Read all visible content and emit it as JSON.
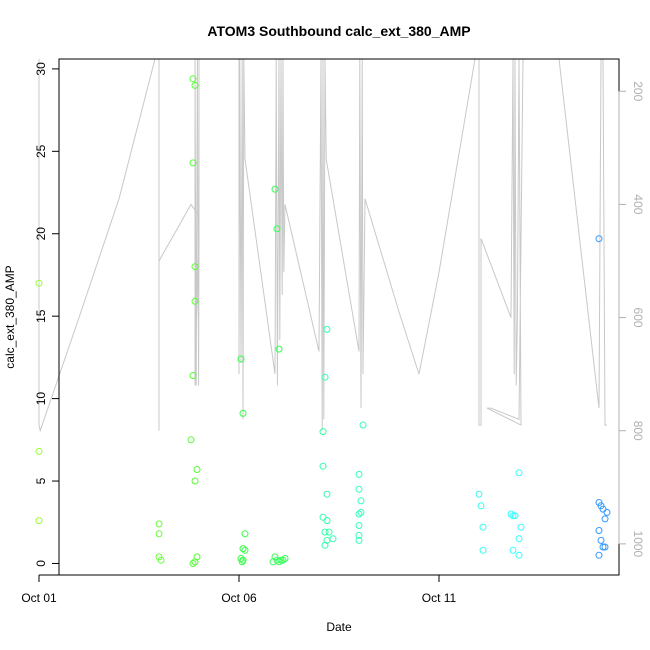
{
  "chart_data": {
    "type": "scatter",
    "title": "ATOM3 Southbound calc_ext_380_AMP",
    "xlabel": "Date",
    "ylabel": "calc_ext_380_AMP",
    "x_ticks": [
      "Oct 01",
      "Oct 06",
      "Oct 11"
    ],
    "y_ticks": [
      "0",
      "5",
      "10",
      "15",
      "20",
      "25",
      "30"
    ],
    "y2_ticks": [
      "200",
      "400",
      "600",
      "800",
      "1000"
    ],
    "xlim_days": [
      0.5,
      14.5
    ],
    "ylim": [
      -0.7,
      30.6
    ],
    "y2lim": [
      1055,
      143
    ],
    "grid": false,
    "series": [
      {
        "type": "points",
        "axis": "left",
        "points": [
          [
            0.0,
            17.0,
            "#99ff33"
          ],
          [
            0.0,
            6.8,
            "#99ff33"
          ],
          [
            0.0,
            2.6,
            "#99ff33"
          ],
          [
            3.0,
            2.4,
            "#66ff33"
          ],
          [
            3.0,
            1.8,
            "#66ff33"
          ],
          [
            3.0,
            0.4,
            "#66ff33"
          ],
          [
            3.05,
            0.2,
            "#66ff33"
          ],
          [
            3.8,
            7.5,
            "#55ff33"
          ],
          [
            3.85,
            29.4,
            "#55ff33"
          ],
          [
            3.9,
            29.0,
            "#55ff33"
          ],
          [
            3.85,
            24.3,
            "#55ff33"
          ],
          [
            3.9,
            18.0,
            "#55ff33"
          ],
          [
            3.9,
            15.9,
            "#55ff33"
          ],
          [
            3.85,
            11.4,
            "#55ff33"
          ],
          [
            3.95,
            5.7,
            "#55ff33"
          ],
          [
            3.9,
            5.0,
            "#55ff33"
          ],
          [
            3.95,
            0.4,
            "#55ff33"
          ],
          [
            3.9,
            0.1,
            "#55ff33"
          ],
          [
            3.85,
            0.0,
            "#55ff33"
          ],
          [
            5.05,
            12.4,
            "#33ff44"
          ],
          [
            5.1,
            9.1,
            "#33ff44"
          ],
          [
            5.15,
            1.8,
            "#33ff44"
          ],
          [
            5.1,
            0.9,
            "#33ff44"
          ],
          [
            5.15,
            0.8,
            "#33ff44"
          ],
          [
            5.05,
            0.3,
            "#33ff44"
          ],
          [
            5.1,
            0.2,
            "#33ff44"
          ],
          [
            5.08,
            0.1,
            "#33ff44"
          ],
          [
            5.9,
            22.7,
            "#33ff55"
          ],
          [
            5.95,
            20.3,
            "#33ff55"
          ],
          [
            6.0,
            13.0,
            "#33ff55"
          ],
          [
            5.9,
            0.4,
            "#33ff55"
          ],
          [
            5.95,
            0.2,
            "#33ff55"
          ],
          [
            6.05,
            0.2,
            "#33ff55"
          ],
          [
            6.1,
            0.2,
            "#33ff55"
          ],
          [
            5.85,
            0.1,
            "#33ff55"
          ],
          [
            6.0,
            0.1,
            "#33ff55"
          ],
          [
            6.15,
            0.3,
            "#33ff55"
          ],
          [
            7.2,
            14.2,
            "#33ffaa"
          ],
          [
            7.15,
            11.3,
            "#33ffaa"
          ],
          [
            7.1,
            8.0,
            "#33ffaa"
          ],
          [
            7.1,
            5.9,
            "#33ffaa"
          ],
          [
            7.2,
            4.2,
            "#33ffaa"
          ],
          [
            7.1,
            2.8,
            "#33ffaa"
          ],
          [
            7.2,
            2.6,
            "#33ffaa"
          ],
          [
            7.15,
            1.9,
            "#33ffaa"
          ],
          [
            7.25,
            1.9,
            "#33ffaa"
          ],
          [
            7.35,
            1.5,
            "#33ffaa"
          ],
          [
            7.2,
            1.4,
            "#33ffaa"
          ],
          [
            7.15,
            1.1,
            "#33ffaa"
          ],
          [
            8.0,
            5.4,
            "#33ffbb"
          ],
          [
            8.1,
            8.4,
            "#33ffbb"
          ],
          [
            8.0,
            4.5,
            "#33ffbb"
          ],
          [
            8.05,
            3.8,
            "#33ffbb"
          ],
          [
            8.0,
            3.0,
            "#33ffbb"
          ],
          [
            8.05,
            3.1,
            "#33ffbb"
          ],
          [
            8.0,
            2.3,
            "#33ffbb"
          ],
          [
            8.0,
            1.7,
            "#33ffbb"
          ],
          [
            8.0,
            1.4,
            "#33ffbb"
          ],
          [
            11.0,
            4.2,
            "#33ffee"
          ],
          [
            11.05,
            3.5,
            "#33ffee"
          ],
          [
            11.1,
            2.2,
            "#33ffee"
          ],
          [
            11.1,
            0.8,
            "#33ffee"
          ],
          [
            11.8,
            3.0,
            "#33ffff"
          ],
          [
            11.85,
            2.9,
            "#33ffff"
          ],
          [
            11.9,
            2.9,
            "#33ffff"
          ],
          [
            12.0,
            5.5,
            "#33ffff"
          ],
          [
            12.05,
            2.2,
            "#33ffff"
          ],
          [
            12.0,
            1.5,
            "#33ffff"
          ],
          [
            11.85,
            0.8,
            "#33ffff"
          ],
          [
            12.0,
            0.5,
            "#33ffff"
          ],
          [
            14.0,
            19.7,
            "#3399ff"
          ],
          [
            14.0,
            3.7,
            "#3399ff"
          ],
          [
            14.05,
            3.5,
            "#3399ff"
          ],
          [
            14.1,
            3.3,
            "#3399ff"
          ],
          [
            14.2,
            3.1,
            "#3399ff"
          ],
          [
            14.15,
            2.7,
            "#3399ff"
          ],
          [
            14.0,
            2.0,
            "#3399ff"
          ],
          [
            14.05,
            1.4,
            "#3399ff"
          ],
          [
            14.1,
            1.0,
            "#3399ff"
          ],
          [
            14.15,
            1.0,
            "#3399ff"
          ],
          [
            14.0,
            0.5,
            "#3399ff"
          ]
        ]
      },
      {
        "type": "line",
        "axis": "right",
        "color": "#c8c8c8",
        "points": [
          [
            0.0,
            143
          ],
          [
            0.0,
            790
          ],
          [
            0.03,
            800
          ],
          [
            1.0,
            600
          ],
          [
            2.0,
            390
          ],
          [
            2.9,
            143
          ],
          [
            3.0,
            143
          ],
          [
            3.0,
            800
          ],
          [
            3.0,
            500
          ],
          [
            3.8,
            400
          ],
          [
            4.0,
            420
          ],
          [
            3.9,
            720
          ],
          [
            3.9,
            143
          ],
          [
            3.93,
            720
          ],
          [
            3.96,
            143
          ],
          [
            3.99,
            720
          ],
          [
            4.0,
            460
          ],
          [
            4.0,
            143
          ],
          [
            4.1,
            143
          ],
          [
            5.0,
            143
          ],
          [
            5.0,
            700
          ],
          [
            5.02,
            143
          ],
          [
            5.05,
            680
          ],
          [
            5.08,
            143
          ],
          [
            5.1,
            780
          ],
          [
            5.12,
            143
          ],
          [
            5.15,
            320
          ],
          [
            5.9,
            700
          ],
          [
            5.93,
            143
          ],
          [
            5.96,
            720
          ],
          [
            6.0,
            143
          ],
          [
            6.02,
            640
          ],
          [
            6.05,
            143
          ],
          [
            6.08,
            560
          ],
          [
            6.1,
            143
          ],
          [
            6.12,
            520
          ],
          [
            6.15,
            400
          ],
          [
            7.0,
            660
          ],
          [
            7.05,
            143
          ],
          [
            7.08,
            800
          ],
          [
            7.1,
            143
          ],
          [
            7.12,
            780
          ],
          [
            7.15,
            143
          ],
          [
            7.18,
            320
          ],
          [
            8.0,
            660
          ],
          [
            8.02,
            143
          ],
          [
            8.05,
            760
          ],
          [
            8.08,
            143
          ],
          [
            8.1,
            700
          ],
          [
            8.15,
            390
          ],
          [
            9.0,
            590
          ],
          [
            9.5,
            700
          ],
          [
            10.0,
            520
          ],
          [
            10.9,
            143
          ],
          [
            11.0,
            143
          ],
          [
            11.0,
            790
          ],
          [
            11.05,
            790
          ],
          [
            11.05,
            460
          ],
          [
            11.8,
            600
          ],
          [
            11.85,
            143
          ],
          [
            11.88,
            700
          ],
          [
            11.9,
            143
          ],
          [
            11.93,
            720
          ],
          [
            11.96,
            600
          ],
          [
            12.0,
            143
          ],
          [
            12.05,
            790
          ],
          [
            11.2,
            760
          ],
          [
            11.3,
            760
          ],
          [
            12.0,
            780
          ],
          [
            12.1,
            143
          ],
          [
            12.2,
            143
          ],
          [
            13.0,
            143
          ],
          [
            14.0,
            760
          ],
          [
            14.05,
            143
          ],
          [
            14.1,
            143
          ],
          [
            14.15,
            790
          ],
          [
            14.2,
            790
          ]
        ]
      }
    ]
  }
}
